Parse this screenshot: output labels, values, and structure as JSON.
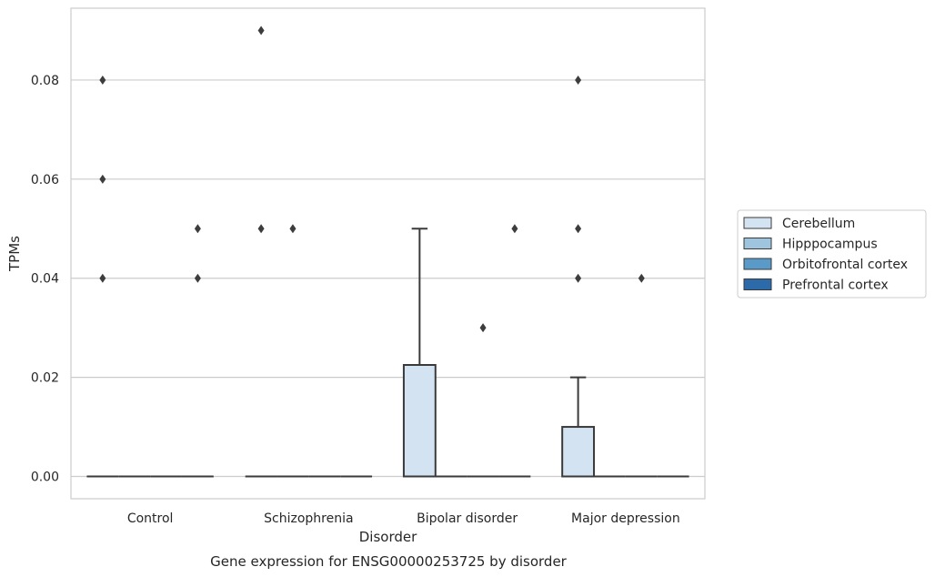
{
  "chart_data": {
    "type": "box",
    "title": "",
    "caption": "Gene expression for ENSG00000253725 by disorder",
    "xlabel": "Disorder",
    "ylabel": "TPMs",
    "ylim": [
      -0.0045,
      0.0945
    ],
    "yticks": [
      0.0,
      0.02,
      0.04,
      0.06,
      0.08
    ],
    "ytick_labels": [
      "0.00",
      "0.02",
      "0.04",
      "0.06",
      "0.08"
    ],
    "grid": "horizontal",
    "legend_position": "right",
    "categories": [
      "Control",
      "Schizophrenia",
      "Bipolar disorder",
      "Major depression"
    ],
    "series": [
      {
        "name": "Cerebellum",
        "color": "#d4e3f1",
        "boxes": [
          {
            "min": 0,
            "q1": 0,
            "median": 0,
            "q3": 0,
            "max": 0,
            "outliers": [
              0.04,
              0.06,
              0.08
            ]
          },
          {
            "min": 0,
            "q1": 0,
            "median": 0,
            "q3": 0,
            "max": 0,
            "outliers": [
              0.05,
              0.09
            ]
          },
          {
            "min": 0,
            "q1": 0,
            "median": 0,
            "q3": 0.0225,
            "max": 0.05,
            "outliers": []
          },
          {
            "min": 0,
            "q1": 0,
            "median": 0,
            "q3": 0.01,
            "max": 0.02,
            "outliers": [
              0.04,
              0.05,
              0.08
            ]
          }
        ]
      },
      {
        "name": "Hipppocampus",
        "color": "#9fc5de",
        "boxes": [
          {
            "min": 0,
            "q1": 0,
            "median": 0,
            "q3": 0,
            "max": 0,
            "outliers": []
          },
          {
            "min": 0,
            "q1": 0,
            "median": 0,
            "q3": 0,
            "max": 0,
            "outliers": [
              0.05
            ]
          },
          {
            "min": 0,
            "q1": 0,
            "median": 0,
            "q3": 0,
            "max": 0,
            "outliers": []
          },
          {
            "min": 0,
            "q1": 0,
            "median": 0,
            "q3": 0,
            "max": 0,
            "outliers": []
          }
        ]
      },
      {
        "name": "Orbitofrontal cortex",
        "color": "#5a9ac9",
        "boxes": [
          {
            "min": 0,
            "q1": 0,
            "median": 0,
            "q3": 0,
            "max": 0,
            "outliers": []
          },
          {
            "min": 0,
            "q1": 0,
            "median": 0,
            "q3": 0,
            "max": 0,
            "outliers": []
          },
          {
            "min": 0,
            "q1": 0,
            "median": 0,
            "q3": 0,
            "max": 0,
            "outliers": [
              0.03
            ]
          },
          {
            "min": 0,
            "q1": 0,
            "median": 0,
            "q3": 0,
            "max": 0,
            "outliers": [
              0.04
            ]
          }
        ]
      },
      {
        "name": "Prefrontal cortex",
        "color": "#2c6aa9",
        "boxes": [
          {
            "min": 0,
            "q1": 0,
            "median": 0,
            "q3": 0,
            "max": 0,
            "outliers": [
              0.04,
              0.05
            ]
          },
          {
            "min": 0,
            "q1": 0,
            "median": 0,
            "q3": 0,
            "max": 0,
            "outliers": []
          },
          {
            "min": 0,
            "q1": 0,
            "median": 0,
            "q3": 0,
            "max": 0,
            "outliers": [
              0.05
            ]
          },
          {
            "min": 0,
            "q1": 0,
            "median": 0,
            "q3": 0,
            "max": 0,
            "outliers": []
          }
        ]
      }
    ]
  }
}
